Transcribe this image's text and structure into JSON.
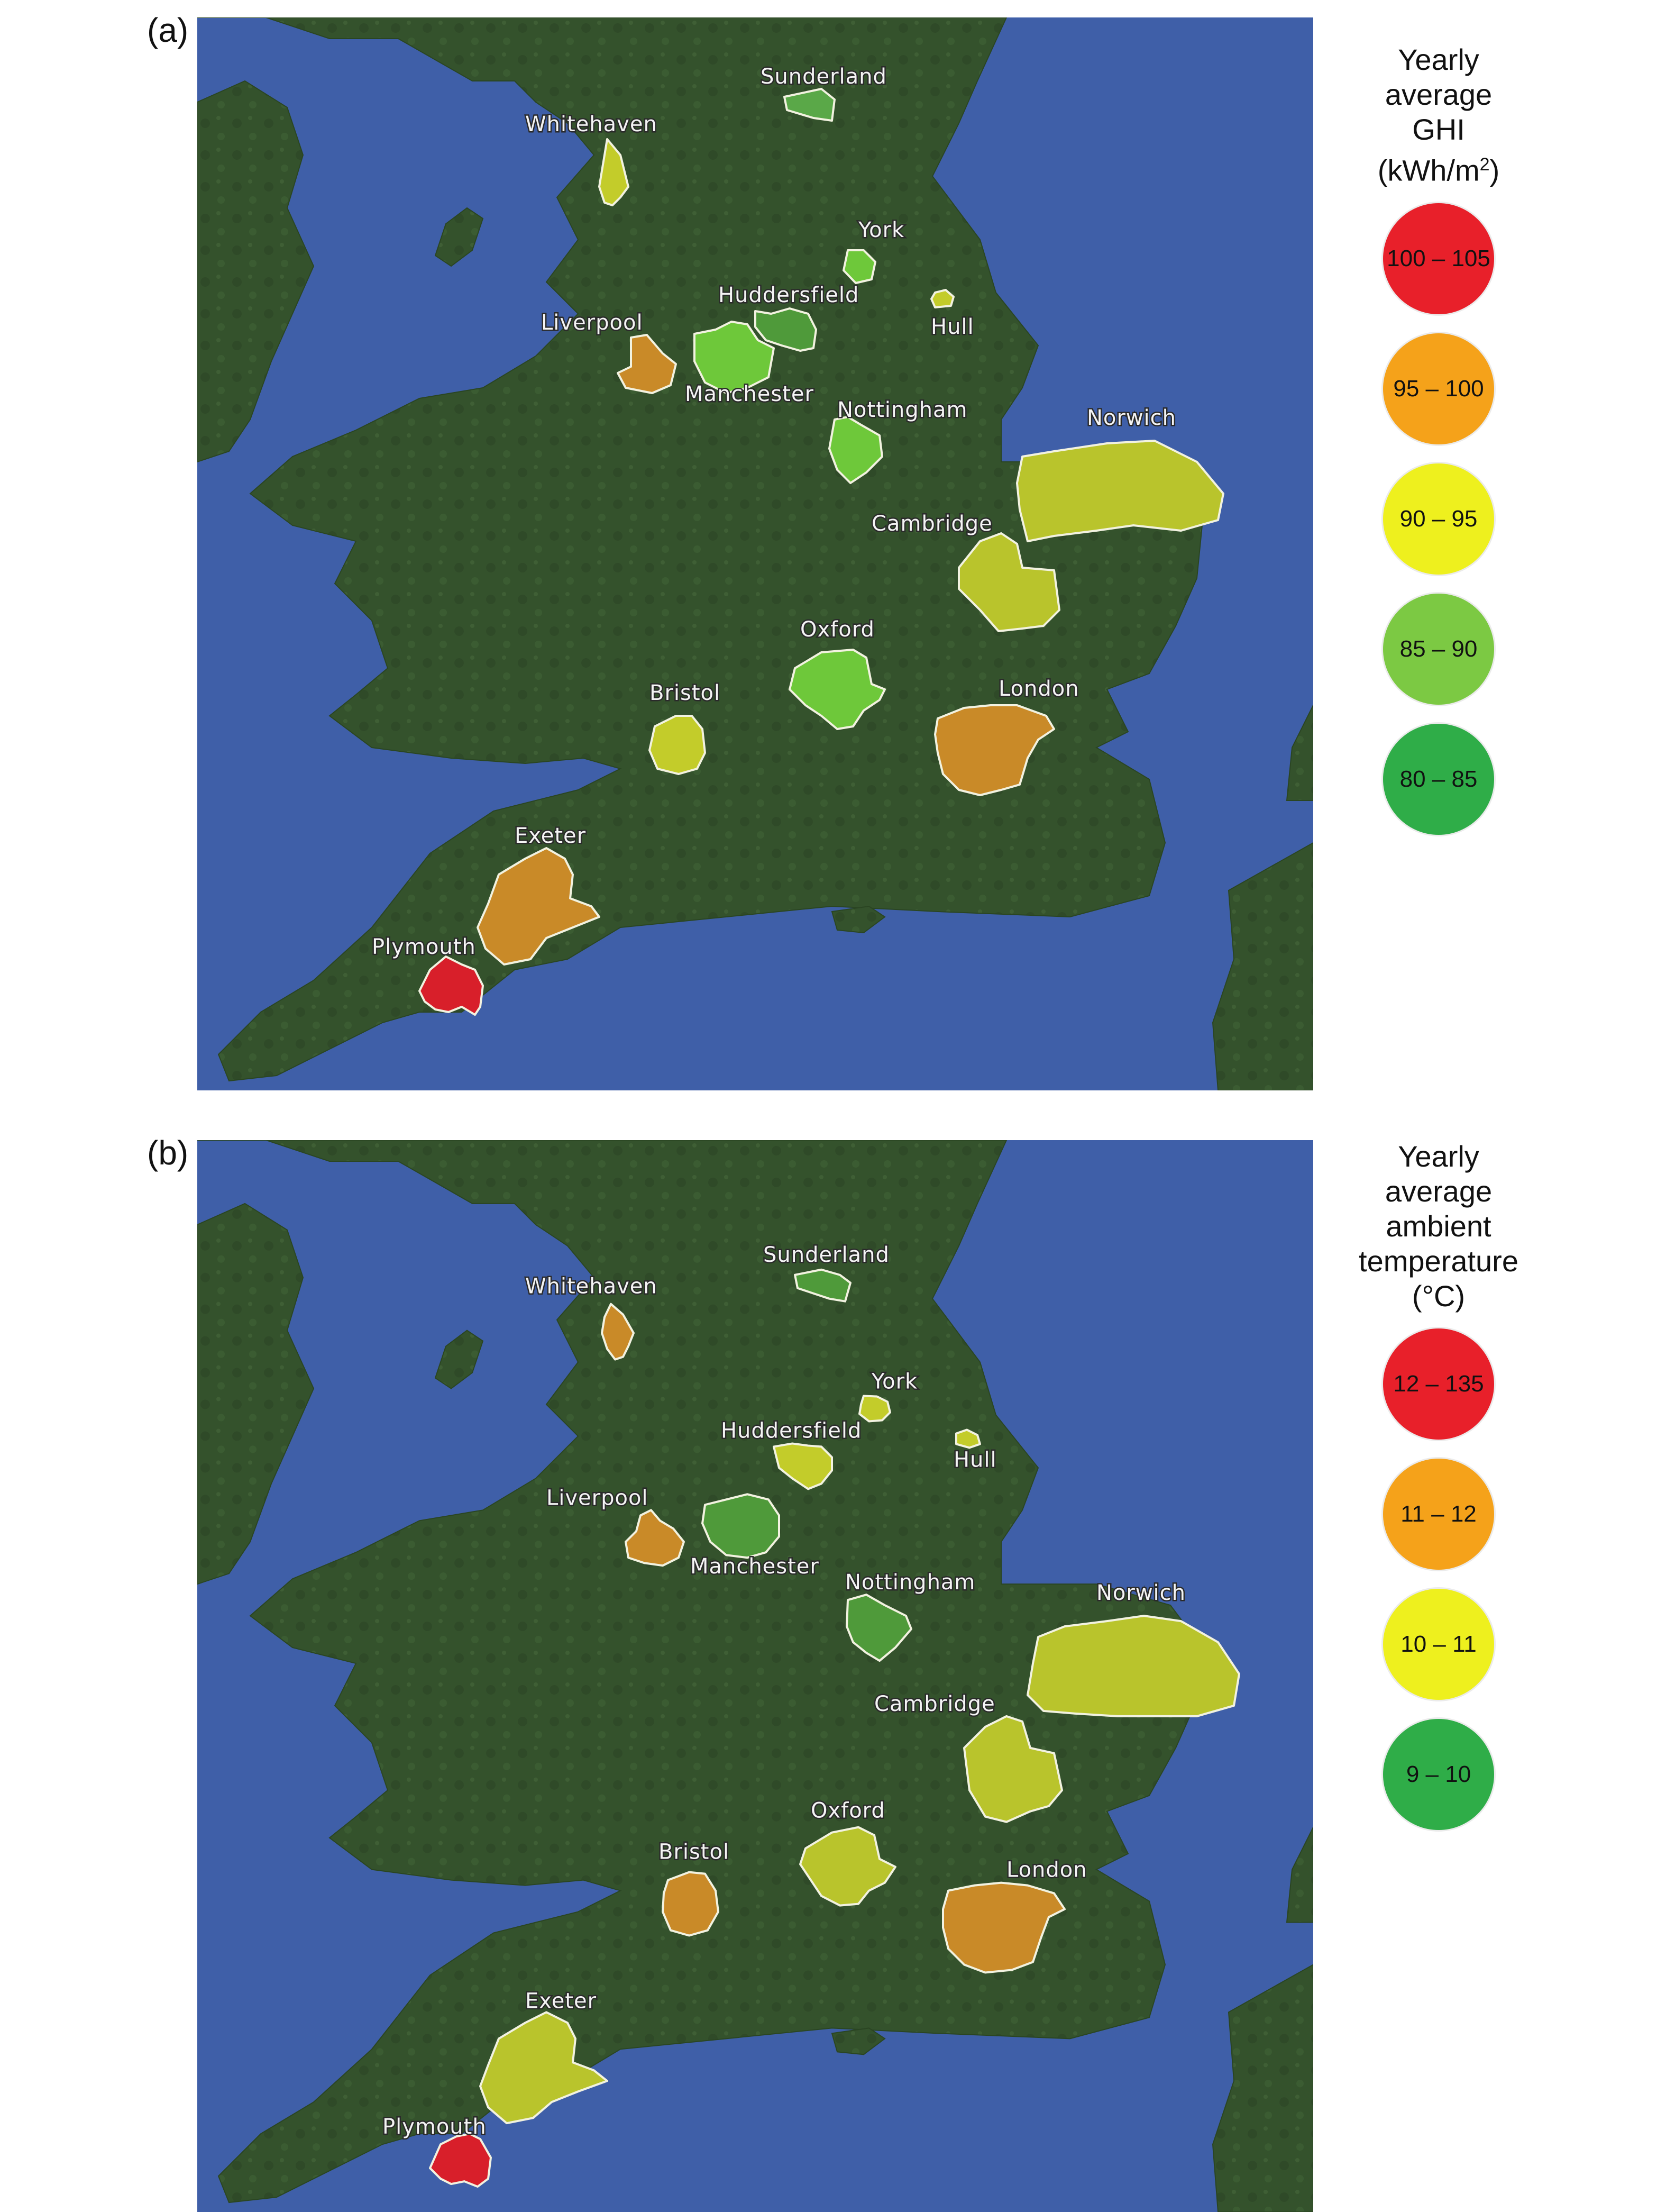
{
  "panels": [
    {
      "id": "a",
      "label": "(a)",
      "legend": {
        "title_lines": [
          "Yearly",
          "average",
          "GHI"
        ],
        "unit_prefix": "(kWh/m",
        "unit_sup": "2",
        "unit_suffix": ")",
        "items": [
          {
            "label": "100 – 105",
            "color": "#e8202a"
          },
          {
            "label": "95 – 100",
            "color": "#f5a21a"
          },
          {
            "label": "90 – 95",
            "color": "#eef01e"
          },
          {
            "label": "85 – 90",
            "color": "#7cc943"
          },
          {
            "label": "80 – 85",
            "color": "#2fad48"
          }
        ]
      },
      "cities": [
        {
          "name": "Sunderland",
          "color": "#5aa848"
        },
        {
          "name": "Whitehaven",
          "color": "#c3cc2a"
        },
        {
          "name": "York",
          "color": "#6ec83a"
        },
        {
          "name": "Huddersfield",
          "color": "#4f9a3a"
        },
        {
          "name": "Hull",
          "color": "#c3cc2a"
        },
        {
          "name": "Liverpool",
          "color": "#c98a28"
        },
        {
          "name": "Manchester",
          "color": "#6ec83a"
        },
        {
          "name": "Nottingham",
          "color": "#6ec83a"
        },
        {
          "name": "Norwich",
          "color": "#b9c42c"
        },
        {
          "name": "Cambridge",
          "color": "#b9c42c"
        },
        {
          "name": "Oxford",
          "color": "#6ec83a"
        },
        {
          "name": "Bristol",
          "color": "#c3cc2a"
        },
        {
          "name": "London",
          "color": "#c98a28"
        },
        {
          "name": "Exeter",
          "color": "#c98a28"
        },
        {
          "name": "Plymouth",
          "color": "#d81f2a"
        }
      ]
    },
    {
      "id": "b",
      "label": "(b)",
      "legend": {
        "title_lines": [
          "Yearly",
          "average",
          "ambient",
          "temperature",
          "(°C)"
        ],
        "items": [
          {
            "label": "12 – 135",
            "color": "#e8202a"
          },
          {
            "label": "11 – 12",
            "color": "#f5a21a"
          },
          {
            "label": "10 – 11",
            "color": "#eef01e"
          },
          {
            "label": "9 – 10",
            "color": "#2fad48"
          }
        ]
      },
      "cities": [
        {
          "name": "Sunderland",
          "color": "#4f9a3a"
        },
        {
          "name": "Whitehaven",
          "color": "#c98a28"
        },
        {
          "name": "York",
          "color": "#c3cc2a"
        },
        {
          "name": "Huddersfield",
          "color": "#c3cc2a"
        },
        {
          "name": "Hull",
          "color": "#c3cc2a"
        },
        {
          "name": "Liverpool",
          "color": "#c98a28"
        },
        {
          "name": "Manchester",
          "color": "#4f9a3a"
        },
        {
          "name": "Nottingham",
          "color": "#4f9a3a"
        },
        {
          "name": "Norwich",
          "color": "#b9c42c"
        },
        {
          "name": "Cambridge",
          "color": "#b9c42c"
        },
        {
          "name": "Oxford",
          "color": "#b9c42c"
        },
        {
          "name": "Bristol",
          "color": "#c98a28"
        },
        {
          "name": "London",
          "color": "#c98a28"
        },
        {
          "name": "Exeter",
          "color": "#b9c42c"
        },
        {
          "name": "Plymouth",
          "color": "#d81f2a"
        }
      ]
    }
  ],
  "map_colors": {
    "sea": "#3f5fa8",
    "land": "#34522c",
    "land_dark": "#2b4424"
  }
}
